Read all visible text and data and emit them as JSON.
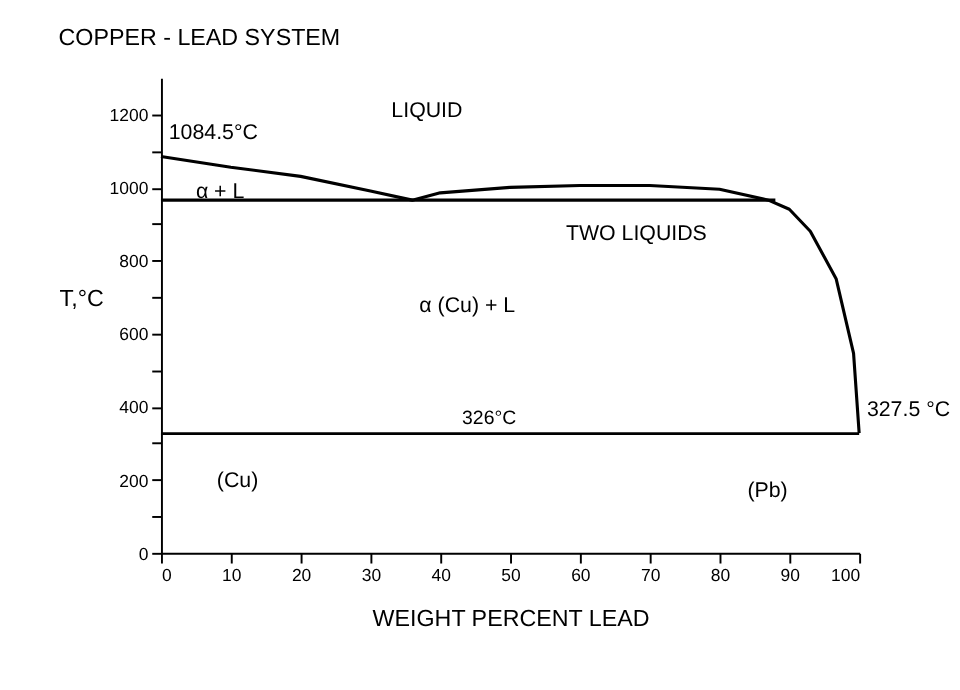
{
  "chart_data": {
    "type": "line",
    "title": "COPPER - LEAD SYSTEM",
    "xlabel": "WEIGHT PERCENT LEAD",
    "ylabel": "T,°C",
    "series": [
      {
        "color": "#000000",
        "x": [
          0,
          10,
          20,
          30,
          36,
          40,
          50,
          60,
          70,
          80,
          87,
          90,
          93,
          96.7,
          99.2,
          100
        ],
        "values": [
          1084.5,
          1055,
          1030,
          990,
          965,
          985,
          1000,
          1005,
          1005,
          995,
          965,
          940,
          880,
          750,
          546,
          327.5
        ]
      },
      {
        "color": "#000000",
        "x": [
          0,
          88
        ],
        "values": [
          965,
          965
        ]
      }
    ],
    "ref_lines": [
      {
        "axis": "y",
        "value": 326,
        "label": "326°C",
        "color": "#000000"
      }
    ],
    "annotations": [
      "LIQUID",
      {
        "text": "1084.5°C",
        "x": 0,
        "y": 1084.5
      },
      "α + L",
      "α (Cu) + L",
      "TWO LIQUIDS",
      {
        "text": "327.5 °C",
        "x": 100,
        "y": 327.5
      },
      "(Cu)",
      "(Pb)"
    ],
    "xlim": [
      0,
      100
    ],
    "ylim": [
      0,
      1300
    ],
    "xticks": [
      0,
      10,
      20,
      30,
      40,
      50,
      60,
      70,
      80,
      90,
      100
    ],
    "yticks": [
      0,
      {
        "value": 100,
        "label": null
      },
      200,
      {
        "value": 300,
        "label": null
      },
      400,
      {
        "value": 500,
        "label": null
      },
      600,
      {
        "value": 700,
        "label": null
      },
      800,
      {
        "value": 900,
        "label": null
      },
      1000,
      {
        "value": 1100,
        "label": null
      },
      1200
    ],
    "grid": false,
    "marker": "none",
    "line_style": "solid"
  }
}
